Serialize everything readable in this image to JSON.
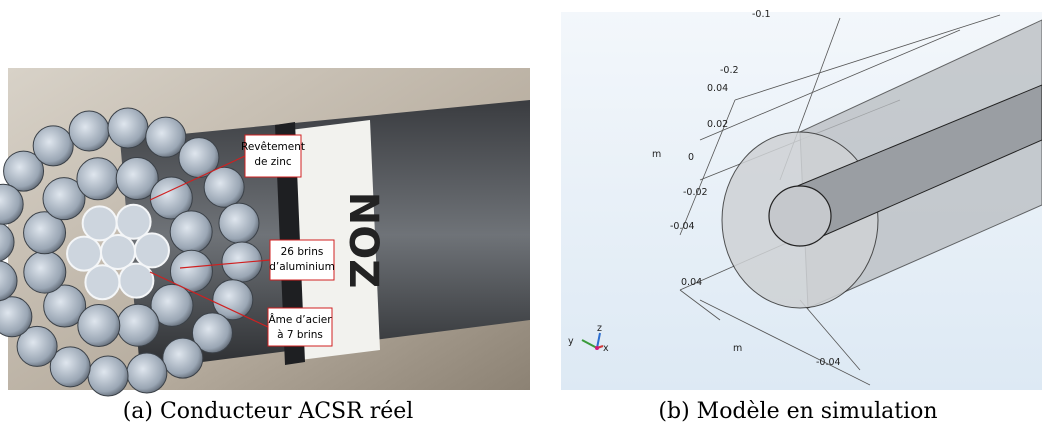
{
  "panels": [
    {
      "caption": "(a) Conducteur ACSR réel",
      "photo_text": "NOZ",
      "annotations": [
        {
          "lines": [
            "Revêtement",
            "de zinc"
          ]
        },
        {
          "lines": [
            "26 brins",
            "d’aluminium"
          ]
        },
        {
          "lines": [
            "Âme d’acier",
            "à 7 brins"
          ]
        }
      ]
    },
    {
      "caption": "(b) Modèle en simulation",
      "axis_labels": [
        "-0.1",
        "-0.2",
        "0.04",
        "0.02",
        "m",
        "0",
        "-0.02",
        "-0.04",
        "0.04",
        "m",
        "-0.04"
      ],
      "triad": [
        "y",
        "z",
        "x"
      ]
    }
  ]
}
